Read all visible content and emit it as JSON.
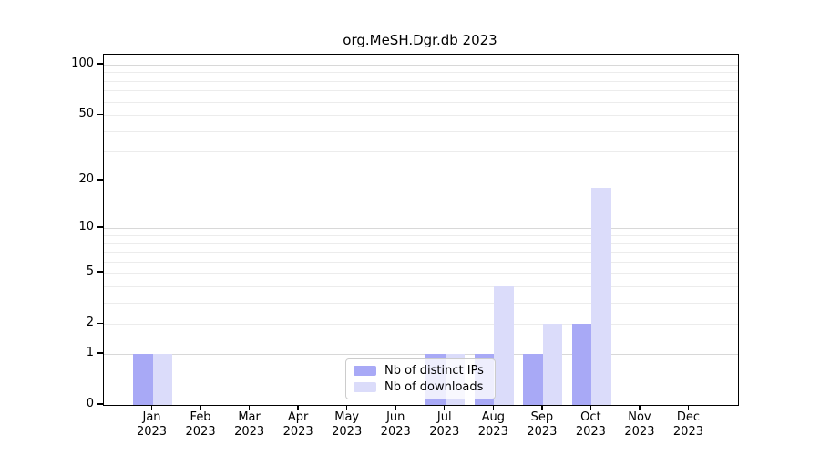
{
  "chart_data": {
    "type": "bar",
    "title": "org.MeSH.Dgr.db 2023",
    "categories": [
      "Jan",
      "Feb",
      "Mar",
      "Apr",
      "May",
      "Jun",
      "Jul",
      "Aug",
      "Sep",
      "Oct",
      "Nov",
      "Dec"
    ],
    "category_year": "2023",
    "series": [
      {
        "name": "Nb of distinct IPs",
        "color": "#a8a9f6",
        "values": [
          1,
          0,
          0,
          0,
          0,
          0,
          1,
          1,
          1,
          2,
          0,
          0
        ]
      },
      {
        "name": "Nb of downloads",
        "color": "#dbdcfa",
        "values": [
          1,
          0,
          0,
          0,
          0,
          0,
          1,
          4,
          2,
          18,
          0,
          0
        ]
      }
    ],
    "xlabel": "",
    "ylabel": "",
    "yscale": "log1p",
    "ylim": [
      0,
      113
    ],
    "yticks": [
      0,
      1,
      2,
      5,
      10,
      20,
      50,
      100
    ],
    "grid": {
      "major": [
        1,
        10,
        100
      ],
      "minor": [
        2,
        3,
        4,
        5,
        6,
        7,
        8,
        9,
        20,
        30,
        40,
        50,
        60,
        70,
        80,
        90
      ]
    },
    "legend": {
      "position": "bottom-center",
      "entries": [
        "Nb of distinct IPs",
        "Nb of downloads"
      ]
    }
  },
  "colors": {
    "background": "#ffffff",
    "axis": "#000000",
    "grid_major": "#d8d8d8",
    "grid_minor": "#ececec",
    "legend_border": "#cccccc",
    "bar_distinct_ips": "#a8a9f6",
    "bar_downloads": "#dbdcfa"
  }
}
